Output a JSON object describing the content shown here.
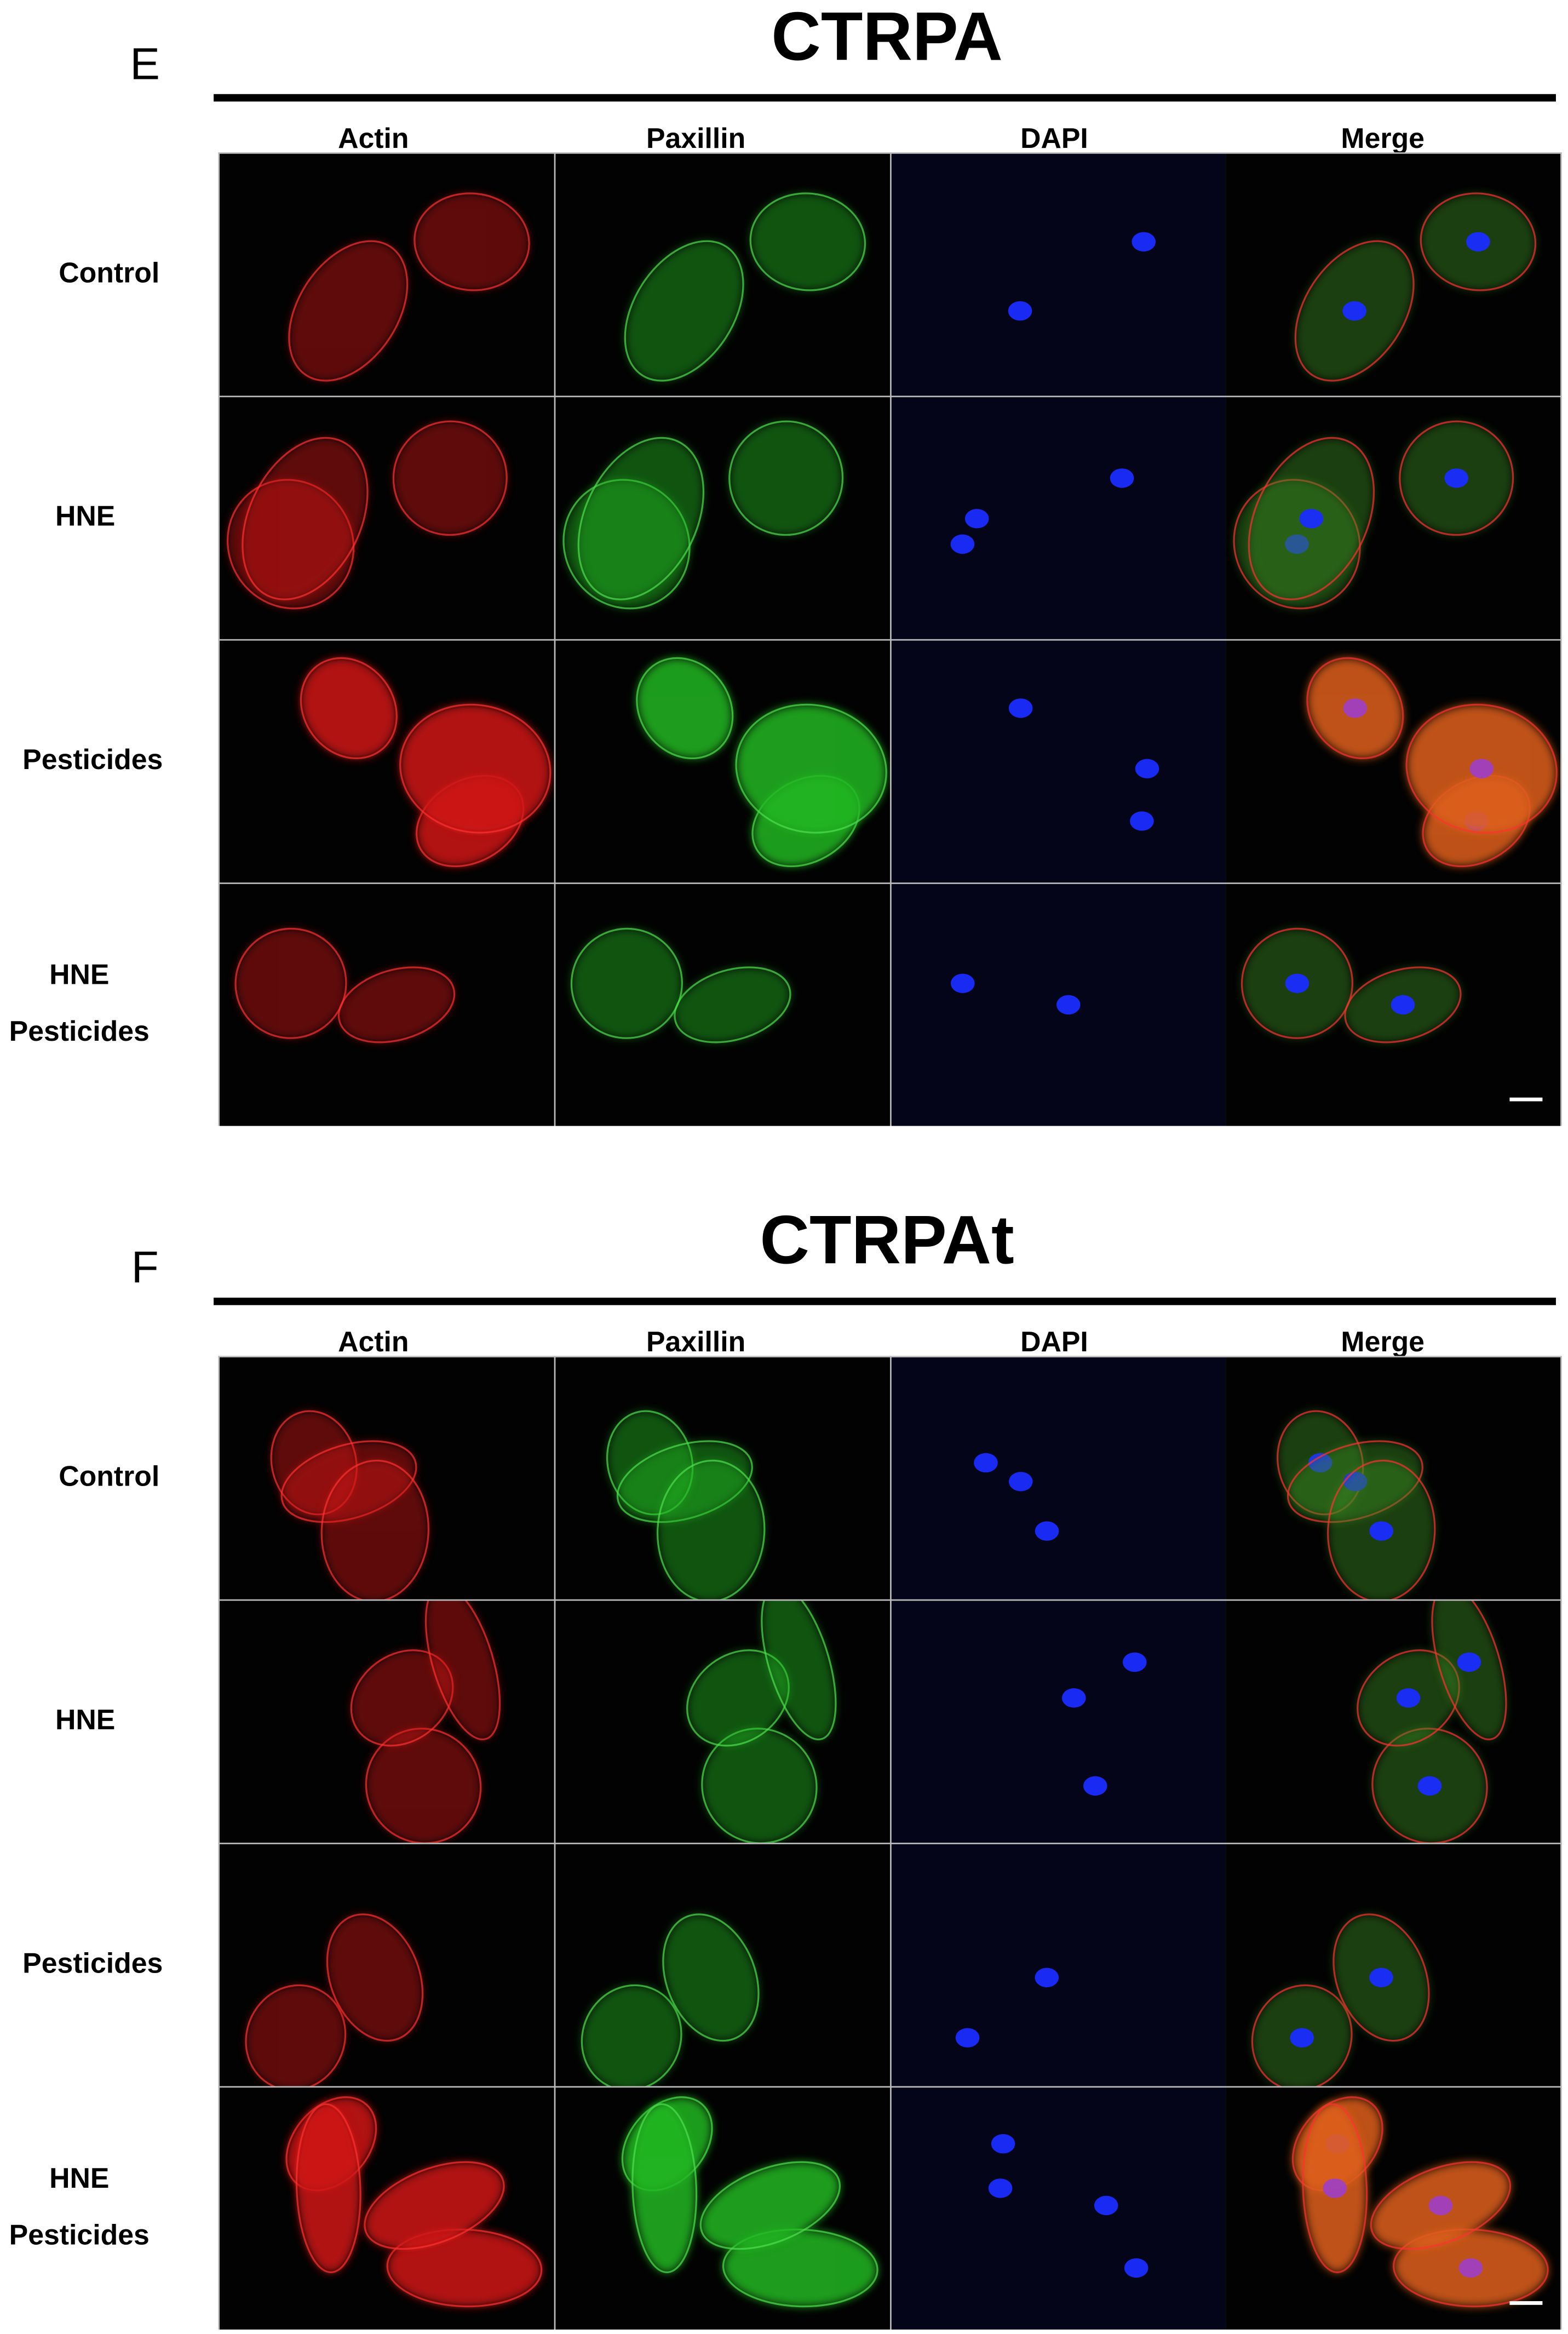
{
  "panels": [
    {
      "letter": "E",
      "title": "CTRPA",
      "columns": [
        "Actin",
        "Paxillin",
        "DAPI",
        "Merge"
      ],
      "rows": [
        {
          "label": [
            "Control"
          ]
        },
        {
          "label": [
            "HNE"
          ]
        },
        {
          "label": [
            "Pesticides"
          ]
        },
        {
          "label": [
            "HNE",
            "Pesticides"
          ]
        }
      ]
    },
    {
      "letter": "F",
      "title": "CTRPAt",
      "columns": [
        "Actin",
        "Paxillin",
        "DAPI",
        "Merge"
      ],
      "rows": [
        {
          "label": [
            "Control"
          ]
        },
        {
          "label": [
            "HNE"
          ]
        },
        {
          "label": [
            "Pesticides"
          ]
        },
        {
          "label": [
            "HNE",
            "Pesticides"
          ]
        }
      ]
    }
  ]
}
